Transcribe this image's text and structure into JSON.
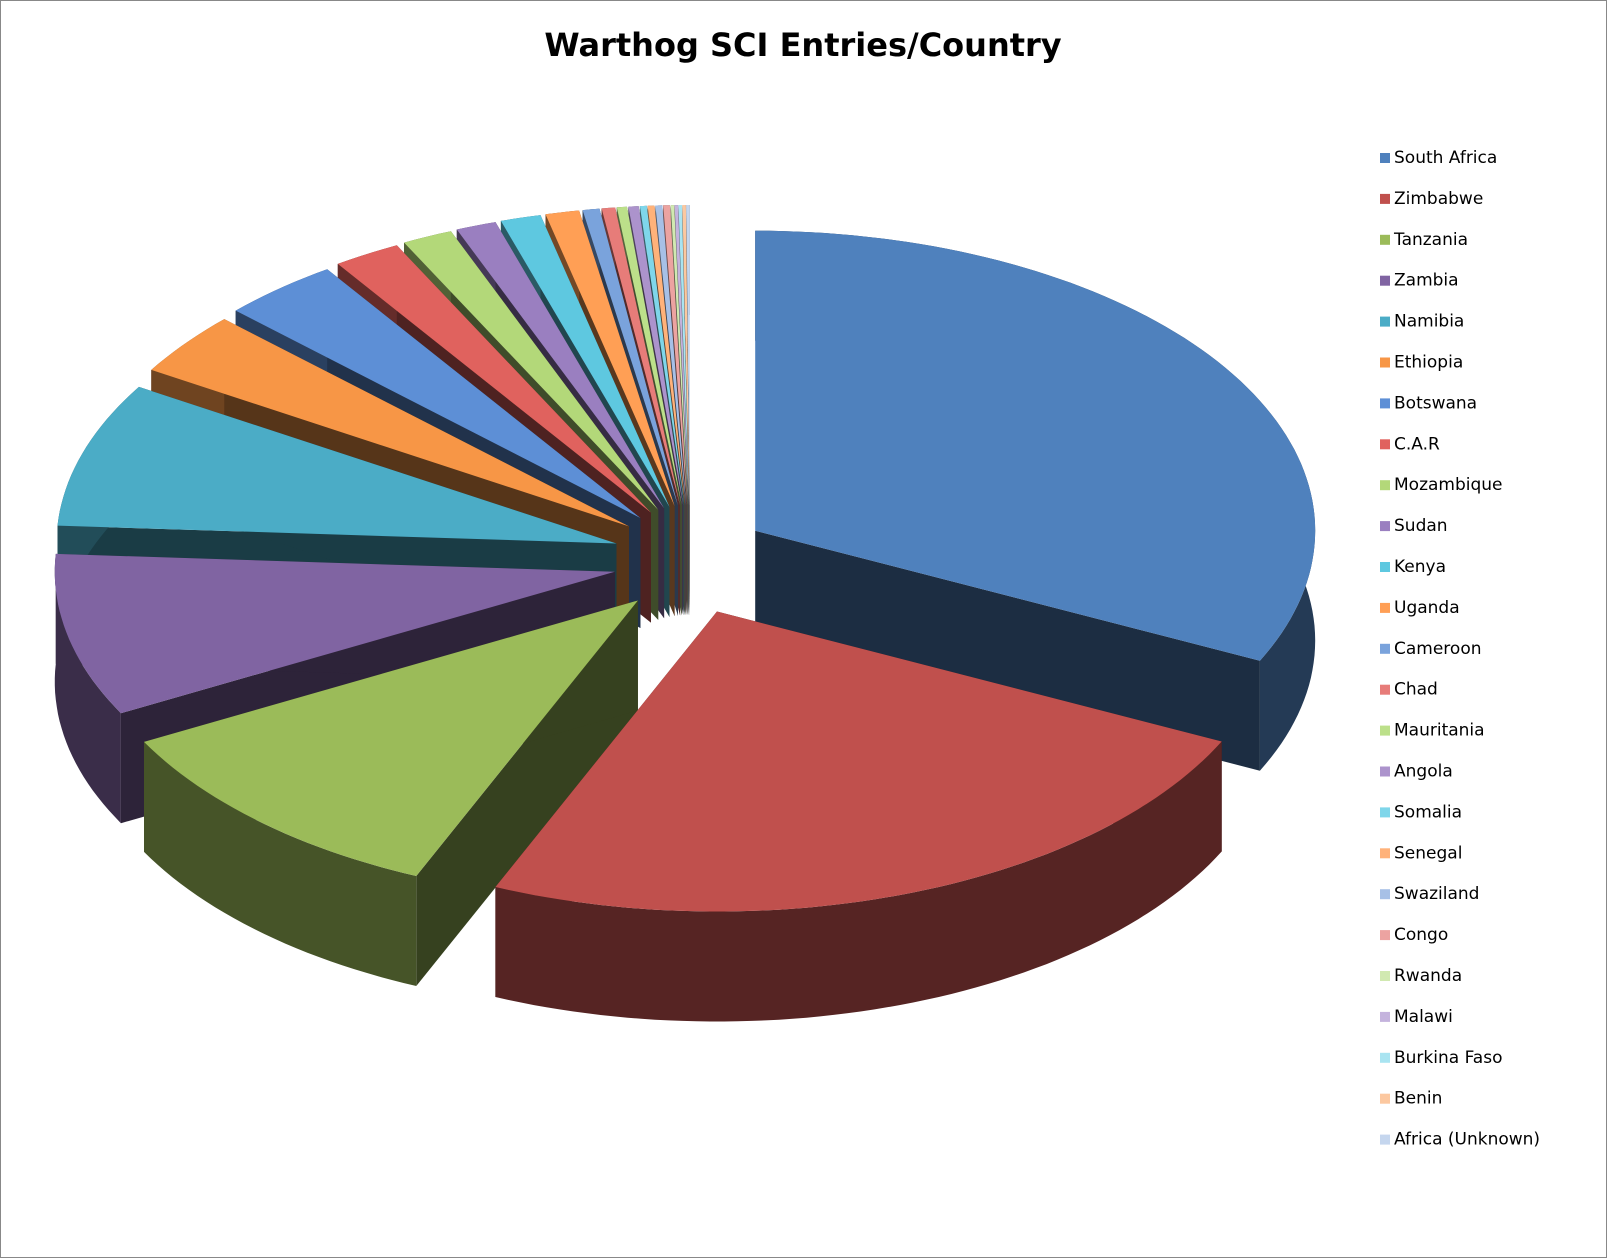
{
  "chart_data": {
    "type": "pie",
    "title": "Warthog SCI Entries/Country",
    "categories": [
      "South Africa",
      "Zimbabwe",
      "Tanzania",
      "Zambia",
      "Namibia",
      "Ethiopia",
      "Botswana",
      "C.A.R",
      "Mozambique",
      "Sudan",
      "Kenya",
      "Uganda",
      "Cameroon",
      "Chad",
      "Mauritania",
      "Angola",
      "Somalia",
      "Senegal",
      "Swaziland",
      "Congo",
      "Rwanda",
      "Malawi",
      "Burkina Faso",
      "Benin",
      "Africa (Unknown)"
    ],
    "values": [
      33,
      25,
      11,
      9,
      8,
      3.5,
      3.5,
      2,
      1.5,
      1.2,
      1.2,
      1,
      0.5,
      0.4,
      0.3,
      0.3,
      0.2,
      0.2,
      0.2,
      0.2,
      0.1,
      0.1,
      0.1,
      0.1,
      0.1
    ],
    "colors": [
      "#4f81bd",
      "#c0504d",
      "#9bbb59",
      "#8064a2",
      "#4bacc6",
      "#f79646",
      "#5d8fd6",
      "#e0625e",
      "#b3d879",
      "#9a7fc0",
      "#5ec8e0",
      "#ff9f55",
      "#7aa3dc",
      "#e77c79",
      "#bce08a",
      "#ac93cc",
      "#7fd6ea",
      "#ffb27a",
      "#a7c0e6",
      "#eca3a1",
      "#d1e9b1",
      "#c4b3dd",
      "#a9e4f1",
      "#fcc8a0",
      "#c5d6ee"
    ],
    "legend": "right"
  }
}
